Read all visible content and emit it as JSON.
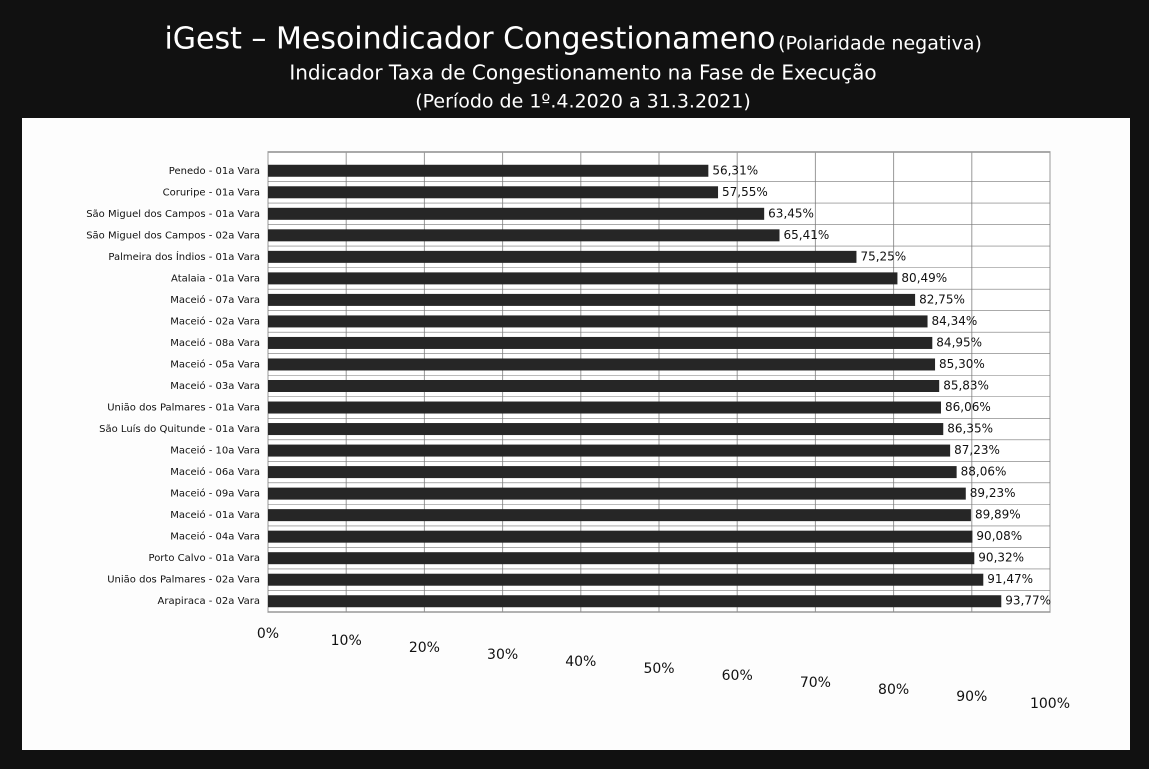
{
  "chart_data": {
    "type": "bar",
    "orientation": "horizontal",
    "title": "iGest – Mesoindicador Congestionameno",
    "title_note": "(Polaridade negativa)",
    "subtitle": "Indicador Taxa de Congestionamento na Fase de Execução",
    "period": "(Período de 1º.4.2020 a 31.3.2021)",
    "categories": [
      "Penedo - 01a Vara",
      "Coruripe - 01a Vara",
      "São Miguel dos Campos - 01a Vara",
      "São Miguel dos Campos - 02a Vara",
      "Palmeira dos Índios - 01a Vara",
      "Atalaia - 01a Vara",
      "Maceió - 07a Vara",
      "Maceió - 02a Vara",
      "Maceió - 08a Vara",
      "Maceió - 05a Vara",
      "Maceió - 03a Vara",
      "União dos Palmares - 01a Vara",
      "São Luís do Quitunde - 01a Vara",
      "Maceió - 10a Vara",
      "Maceió - 06a Vara",
      "Maceió - 09a Vara",
      "Maceió - 01a Vara",
      "Maceió - 04a Vara",
      "Porto Calvo - 01a Vara",
      "União dos Palmares - 02a Vara",
      "Arapiraca - 02a Vara"
    ],
    "values": [
      56.31,
      57.55,
      63.45,
      65.41,
      75.25,
      80.49,
      82.75,
      84.34,
      84.95,
      85.3,
      85.83,
      86.06,
      86.35,
      87.23,
      88.06,
      89.23,
      89.89,
      90.08,
      90.32,
      91.47,
      93.77
    ],
    "value_labels": [
      "56,31%",
      "57,55%",
      "63,45%",
      "65,41%",
      "75,25%",
      "80,49%",
      "82,75%",
      "84,34%",
      "84,95%",
      "85,30%",
      "85,83%",
      "86,06%",
      "86,35%",
      "87,23%",
      "88,06%",
      "89,23%",
      "89,89%",
      "90,08%",
      "90,32%",
      "91,47%",
      "93,77%"
    ],
    "color": "#262626",
    "xlim": [
      0,
      100
    ],
    "xticks": [
      {
        "value": 0,
        "label": "0%"
      },
      {
        "value": 10,
        "label": "10%"
      },
      {
        "value": 20,
        "label": "20%"
      },
      {
        "value": 30,
        "label": "30%"
      },
      {
        "value": 40,
        "label": "40%"
      },
      {
        "value": 50,
        "label": "50%"
      },
      {
        "value": 60,
        "label": "60%"
      },
      {
        "value": 70,
        "label": "70%"
      },
      {
        "value": 80,
        "label": "80%"
      },
      {
        "value": 90,
        "label": "90%"
      },
      {
        "value": 100,
        "label": "100%"
      }
    ],
    "grid": true
  }
}
